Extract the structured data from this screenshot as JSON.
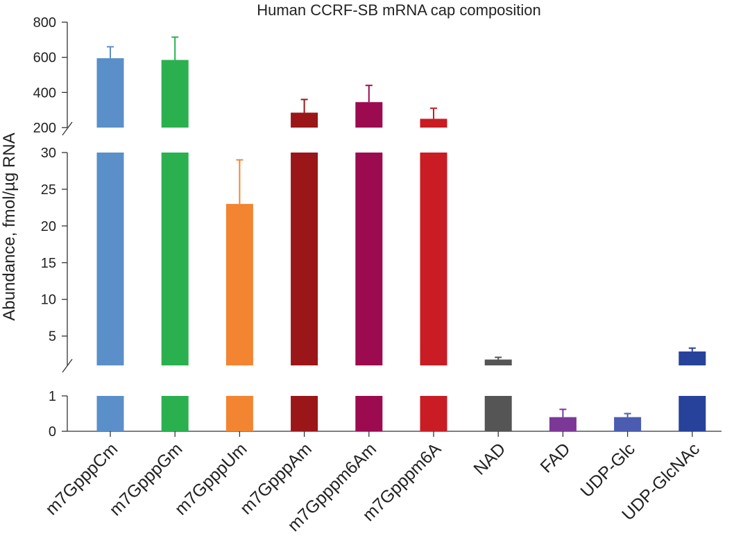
{
  "chart_data": {
    "type": "bar",
    "title": "Human CCRF-SB mRNA cap composition",
    "ylabel": "Abundance, fmol/µg RNA",
    "xlabel": "",
    "axis_breaks": "y-axis broken into three segments: 0–1, 1–30, 200–800",
    "segments": [
      {
        "name": "upper",
        "ylim": [
          200,
          800
        ],
        "ticks": [
          200,
          400,
          600,
          800
        ],
        "tick_labels": [
          "200",
          "400",
          "600",
          "800"
        ]
      },
      {
        "name": "middle",
        "ylim": [
          1,
          30
        ],
        "ticks": [
          5,
          10,
          15,
          20,
          25,
          30
        ],
        "tick_labels": [
          "5",
          "10",
          "15",
          "20",
          "25",
          "30"
        ]
      },
      {
        "name": "lower",
        "ylim": [
          0,
          1
        ],
        "ticks": [
          0,
          1
        ],
        "tick_labels": [
          "0",
          "1"
        ]
      }
    ],
    "categories": [
      "m7GpppCm",
      "m7GpppGm",
      "m7GpppUm",
      "m7GpppAm",
      "m7Gpppm6Am",
      "m7Gpppm6A",
      "NAD",
      "FAD",
      "UDP-Glc",
      "UDP-GlcNAc"
    ],
    "values": [
      595,
      585,
      23,
      285,
      345,
      250,
      1.8,
      0.4,
      0.4,
      2.9
    ],
    "errors": [
      65,
      130,
      6,
      75,
      95,
      60,
      0.3,
      0.22,
      0.1,
      0.45
    ],
    "colors": [
      "#5a8fc9",
      "#2bb04f",
      "#f28432",
      "#9b1618",
      "#9c0b4f",
      "#c91c24",
      "#555555",
      "#7c3896",
      "#4a5db0",
      "#27429a"
    ]
  }
}
